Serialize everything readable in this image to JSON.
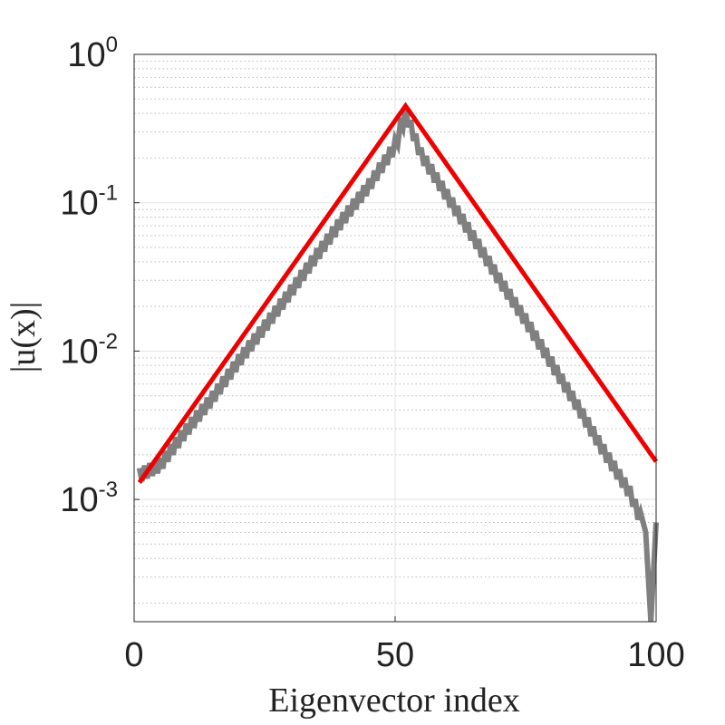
{
  "chart_data": {
    "type": "line",
    "title": "",
    "xlabel": "Eigenvector index",
    "ylabel": "|u(x)|",
    "xlim": [
      0,
      100
    ],
    "ylim": [
      0.00015,
      1
    ],
    "yscale": "log",
    "grid": true,
    "x_ticks": [
      0,
      50,
      100
    ],
    "x_tick_labels": [
      "0",
      "50",
      "100"
    ],
    "y_ticks": [
      0.001,
      0.01,
      0.1,
      1
    ],
    "y_tick_labels": [
      {
        "base": "10",
        "exp": "-3"
      },
      {
        "base": "10",
        "exp": "-2"
      },
      {
        "base": "10",
        "exp": "-1"
      },
      {
        "base": "10",
        "exp": "0"
      }
    ],
    "series": [
      {
        "color": "#808080",
        "style": "oscillating",
        "x": [
          1,
          5,
          10,
          15,
          20,
          25,
          30,
          35,
          40,
          45,
          50,
          52,
          55,
          60,
          65,
          70,
          75,
          80,
          85,
          90,
          95,
          98,
          99,
          100
        ],
        "y": [
          0.00145,
          0.0017,
          0.0029,
          0.0048,
          0.0085,
          0.0145,
          0.025,
          0.044,
          0.077,
          0.13,
          0.24,
          0.4,
          0.21,
          0.11,
          0.058,
          0.03,
          0.016,
          0.0082,
          0.0042,
          0.0021,
          0.0011,
          0.0006,
          0.00015,
          0.0007
        ]
      },
      {
        "color": "#ee0000",
        "style": "straight",
        "x": [
          1,
          52,
          100
        ],
        "y": [
          0.0013,
          0.45,
          0.0018
        ]
      }
    ]
  }
}
